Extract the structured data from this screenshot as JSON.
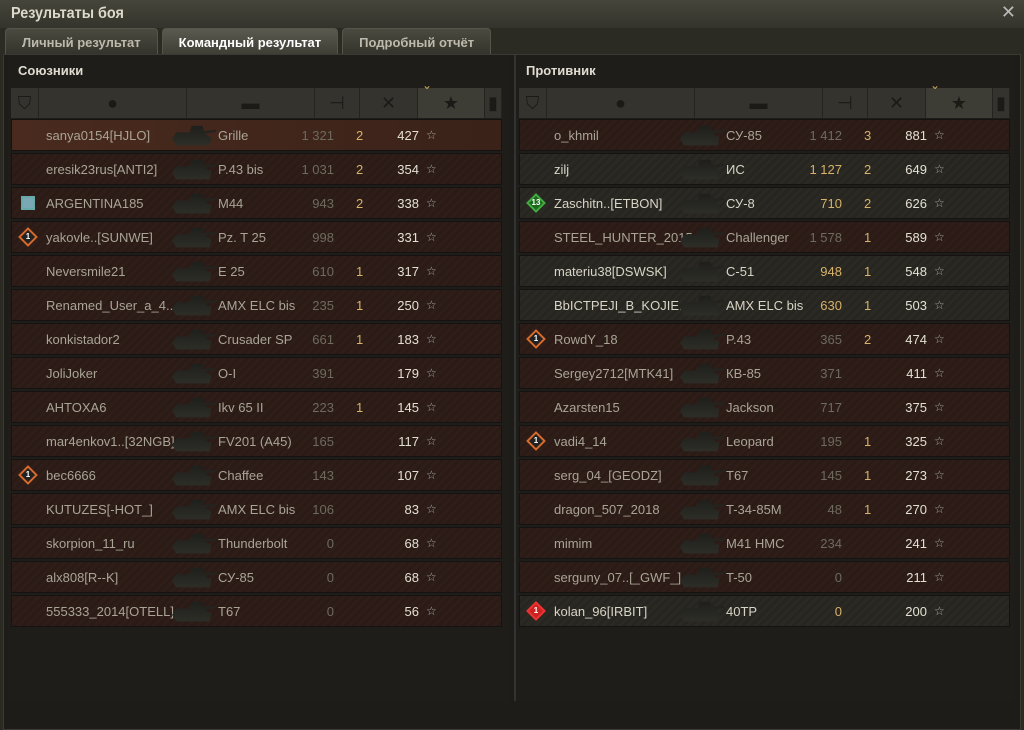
{
  "window": {
    "title": "Результаты боя"
  },
  "tabs": [
    {
      "label": "Личный результат",
      "active": false
    },
    {
      "label": "Командный результат",
      "active": true
    },
    {
      "label": "Подробный отчёт",
      "active": false
    }
  ],
  "header_icons": [
    "squad-icon",
    "player-icon",
    "tank-icon",
    "damage-icon",
    "frags-icon",
    "xp-star-icon",
    "medal-icon"
  ],
  "sorted_column": "xp",
  "colors": {
    "damage_alive": "#d8b26a",
    "frags": "#d8b26a",
    "dead_row": "#2e1d18",
    "alive_row": "#2a2924"
  },
  "allies": {
    "title": "Союзники",
    "players": [
      {
        "name": "sanya0154[HJLO]",
        "tank": "Grille",
        "damage": "1 321",
        "frags": "2",
        "xp": "427",
        "alive": false
      },
      {
        "name": "eresik23rus[ANTI2]",
        "tank": "P.43 bis",
        "damage": "1 031",
        "frags": "2",
        "xp": "354",
        "alive": false
      },
      {
        "name": "ARGENTINA185",
        "tank": "M44",
        "damage": "943",
        "frags": "2",
        "xp": "338",
        "alive": false,
        "badge": "medal"
      },
      {
        "name": "yakovle..[SUNWE]",
        "tank": "Pz. T 25",
        "damage": "998",
        "frags": "",
        "xp": "331",
        "alive": false,
        "badge": "orange",
        "badge_text": "1"
      },
      {
        "name": "Neversmile21",
        "tank": "E 25",
        "damage": "610",
        "frags": "1",
        "xp": "317",
        "alive": false
      },
      {
        "name": "Renamed_User_a_4..",
        "tank": "AMX ELC bis",
        "damage": "235",
        "frags": "1",
        "xp": "250",
        "alive": false
      },
      {
        "name": "konkistador2",
        "tank": "Crusader SP",
        "damage": "661",
        "frags": "1",
        "xp": "183",
        "alive": false
      },
      {
        "name": "JoliJoker",
        "tank": "O-I",
        "damage": "391",
        "frags": "",
        "xp": "179",
        "alive": false
      },
      {
        "name": "AHTOXA6",
        "tank": "Ikv 65 II",
        "damage": "223",
        "frags": "1",
        "xp": "145",
        "alive": false
      },
      {
        "name": "mar4enkov1..[32NGB]",
        "tank": "FV201 (A45)",
        "damage": "165",
        "frags": "",
        "xp": "117",
        "alive": false
      },
      {
        "name": "bec6666",
        "tank": "Chaffee",
        "damage": "143",
        "frags": "",
        "xp": "107",
        "alive": false,
        "badge": "orange",
        "badge_text": "1"
      },
      {
        "name": "KUTUZES[-HOT_]",
        "tank": "AMX ELC bis",
        "damage": "106",
        "frags": "",
        "xp": "83",
        "alive": false
      },
      {
        "name": "skorpion_11_ru",
        "tank": "Thunderbolt",
        "damage": "0",
        "frags": "",
        "xp": "68",
        "alive": false
      },
      {
        "name": "alx808[R--K]",
        "tank": "СУ-85",
        "damage": "0",
        "frags": "",
        "xp": "68",
        "alive": false
      },
      {
        "name": "555333_2014[OTELL]",
        "tank": "T67",
        "damage": "0",
        "frags": "",
        "xp": "56",
        "alive": false
      }
    ]
  },
  "enemies": {
    "title": "Противник",
    "players": [
      {
        "name": "o_khmil",
        "tank": "СУ-85",
        "damage": "1 412",
        "frags": "3",
        "xp": "881",
        "alive": false
      },
      {
        "name": "zilj",
        "tank": "ИС",
        "damage": "1 127",
        "frags": "2",
        "xp": "649",
        "alive": true
      },
      {
        "name": "Zaschitn..[ETBON]",
        "tank": "СУ-8",
        "damage": "710",
        "frags": "2",
        "xp": "626",
        "alive": true,
        "badge": "green",
        "badge_text": "13"
      },
      {
        "name": "STEEL_HUNTER_2015",
        "tank": "Challenger",
        "damage": "1 578",
        "frags": "1",
        "xp": "589",
        "alive": false
      },
      {
        "name": "materiu38[DSWSK]",
        "tank": "С-51",
        "damage": "948",
        "frags": "1",
        "xp": "548",
        "alive": true
      },
      {
        "name": "BbICTPEJI_B_KOJIE..",
        "tank": "AMX ELC bis",
        "damage": "630",
        "frags": "1",
        "xp": "503",
        "alive": true
      },
      {
        "name": "RowdY_18",
        "tank": "P.43",
        "damage": "365",
        "frags": "2",
        "xp": "474",
        "alive": false,
        "badge": "orange",
        "badge_text": "1"
      },
      {
        "name": "Sergey2712[MTK41]",
        "tank": "КВ-85",
        "damage": "371",
        "frags": "",
        "xp": "411",
        "alive": false
      },
      {
        "name": "Azarsten15",
        "tank": "Jackson",
        "damage": "717",
        "frags": "",
        "xp": "375",
        "alive": false
      },
      {
        "name": "vadi4_14",
        "tank": "Leopard",
        "damage": "195",
        "frags": "1",
        "xp": "325",
        "alive": false,
        "badge": "orange",
        "badge_text": "1"
      },
      {
        "name": "serg_04_[GEODZ]",
        "tank": "T67",
        "damage": "145",
        "frags": "1",
        "xp": "273",
        "alive": false
      },
      {
        "name": "dragon_507_2018",
        "tank": "T-34-85M",
        "damage": "48",
        "frags": "1",
        "xp": "270",
        "alive": false
      },
      {
        "name": "mimim",
        "tank": "M41 HMC",
        "damage": "234",
        "frags": "",
        "xp": "241",
        "alive": false
      },
      {
        "name": "serguny_07..[_GWF_]",
        "tank": "T-50",
        "damage": "0",
        "frags": "",
        "xp": "211",
        "alive": false
      },
      {
        "name": "kolan_96[IRBIT]",
        "tank": "40TP",
        "damage": "0",
        "frags": "",
        "xp": "200",
        "alive": true,
        "badge": "red",
        "badge_text": "1"
      }
    ]
  }
}
